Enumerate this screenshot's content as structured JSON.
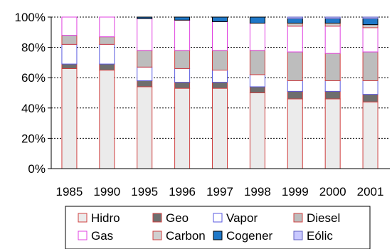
{
  "chart_data": {
    "type": "bar",
    "stacked": true,
    "percent": true,
    "categories": [
      "1985",
      "1990",
      "1995",
      "1996",
      "1997",
      "1998",
      "1999",
      "2000",
      "2001"
    ],
    "y_ticks": [
      "0%",
      "20%",
      "40%",
      "60%",
      "80%",
      "100%"
    ],
    "ylim": [
      0,
      100
    ],
    "grid": "horizontal dotted at 20% steps",
    "legend_position": "bottom",
    "series": [
      {
        "name": "Hidro",
        "color": "#ebebeb",
        "stroke": "#d04040",
        "values": [
          66,
          65,
          54,
          53,
          53,
          50,
          46,
          46,
          44
        ]
      },
      {
        "name": "Geo",
        "color": "#6e6e6e",
        "stroke": "#d04040",
        "values": [
          3,
          4,
          4,
          4,
          4,
          4,
          5,
          5,
          5
        ]
      },
      {
        "name": "Vapor",
        "color": "#ffffff",
        "stroke": "#5a5ae0",
        "values": [
          13,
          13,
          9,
          9,
          8,
          8,
          7,
          7,
          9
        ]
      },
      {
        "name": "Diesel",
        "color": "#bdbdbd",
        "stroke": "#d04040",
        "values": [
          6,
          5,
          11,
          12,
          13,
          16,
          19,
          18,
          19
        ]
      },
      {
        "name": "Gas",
        "color": "#ffffff",
        "stroke": "#e040e0",
        "values": [
          12,
          13,
          21,
          20,
          19,
          18,
          17,
          18,
          16
        ]
      },
      {
        "name": "Carbon",
        "color": "#cfcfcf",
        "stroke": "#d04040",
        "values": [
          0,
          0,
          0,
          0,
          0,
          0,
          2,
          2,
          2
        ]
      },
      {
        "name": "Cogener",
        "color": "#1f78c8",
        "stroke": "#000000",
        "values": [
          0,
          0,
          1,
          2,
          3,
          4,
          3,
          3,
          4
        ]
      },
      {
        "name": "Eólic",
        "color": "#c8c8ff",
        "stroke": "#6060c0",
        "values": [
          0,
          0,
          0,
          0,
          0,
          0,
          1,
          1,
          1
        ]
      }
    ],
    "legend": [
      "Hidro",
      "Geo",
      "Vapor",
      "Diesel",
      "Gas",
      "Carbon",
      "Cogener",
      "Eólic"
    ]
  }
}
